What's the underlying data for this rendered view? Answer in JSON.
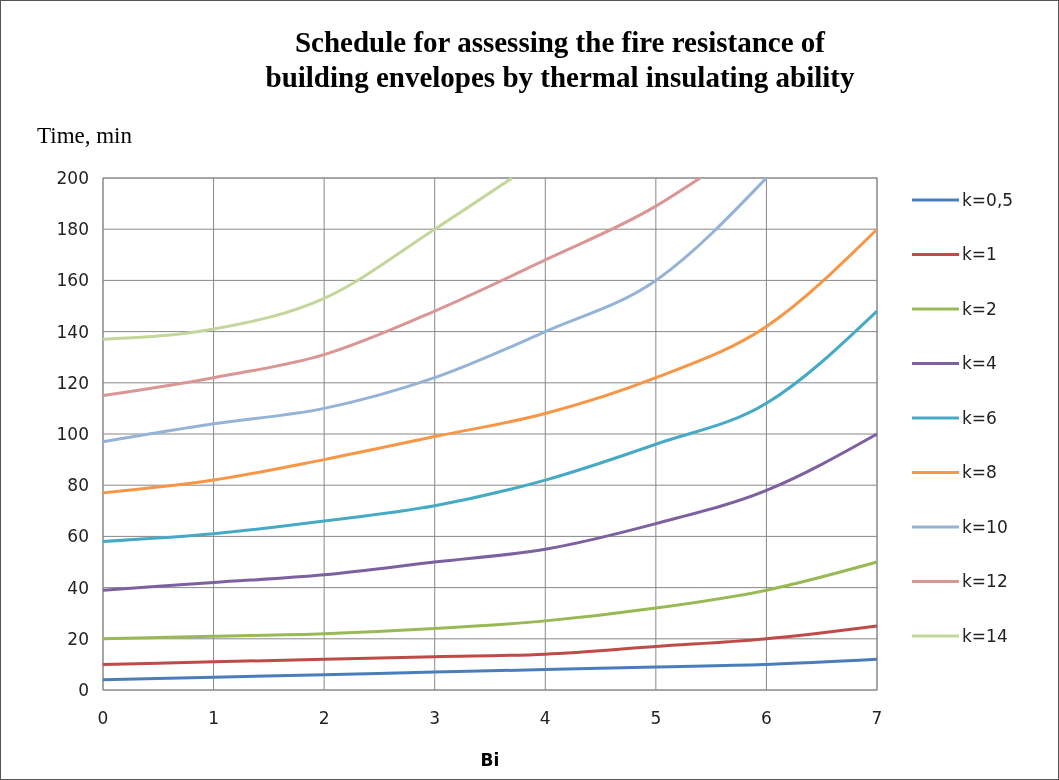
{
  "chart_data": {
    "type": "line",
    "title": "Schedule for assessing the fire resistance of building envelopes by thermal insulating ability",
    "xlabel": "Bi",
    "ylabel": "Time, min",
    "x": [
      0,
      1,
      2,
      3,
      4,
      5,
      6,
      7
    ],
    "series": [
      {
        "name": "k=0,5",
        "color": "#4a7ebb",
        "values": [
          4,
          5,
          6,
          7,
          8,
          9,
          10,
          12
        ]
      },
      {
        "name": "k=1",
        "color": "#be4b48",
        "values": [
          10,
          11,
          12,
          13,
          14,
          17,
          20,
          25
        ]
      },
      {
        "name": "k=2",
        "color": "#98b954",
        "values": [
          20,
          21,
          22,
          24,
          27,
          32,
          39,
          50
        ]
      },
      {
        "name": "k=4",
        "color": "#7d60a0",
        "values": [
          39,
          42,
          45,
          50,
          55,
          65,
          78,
          100
        ]
      },
      {
        "name": "k=6",
        "color": "#46aac5",
        "values": [
          58,
          61,
          66,
          72,
          82,
          96,
          112,
          148
        ]
      },
      {
        "name": "k=8",
        "color": "#f79646",
        "values": [
          77,
          82,
          90,
          99,
          108,
          122,
          142,
          180
        ]
      },
      {
        "name": "k=10",
        "color": "#95b3d7",
        "x": [
          0,
          1,
          2,
          3,
          4,
          5,
          6
        ],
        "values": [
          97,
          104,
          110,
          122,
          140,
          160,
          200
        ]
      },
      {
        "name": "k=12",
        "color": "#d99694",
        "x": [
          0,
          1,
          2,
          3,
          4,
          5,
          5.4
        ],
        "values": [
          115,
          122,
          131,
          148,
          168,
          189,
          200
        ]
      },
      {
        "name": "k=14",
        "color": "#c3d69b",
        "x": [
          0,
          1,
          2,
          3,
          3.7
        ],
        "values": [
          137,
          141,
          153,
          180,
          200
        ]
      }
    ],
    "xlim": [
      0,
      7
    ],
    "xticks": [
      0,
      1,
      2,
      3,
      4,
      5,
      6,
      7
    ],
    "ylim": [
      0,
      200
    ],
    "yticks": [
      0,
      20,
      40,
      60,
      80,
      100,
      120,
      140,
      160,
      180,
      200
    ],
    "grid": true,
    "legend": "right",
    "marker": "none",
    "line_style": "solid"
  }
}
